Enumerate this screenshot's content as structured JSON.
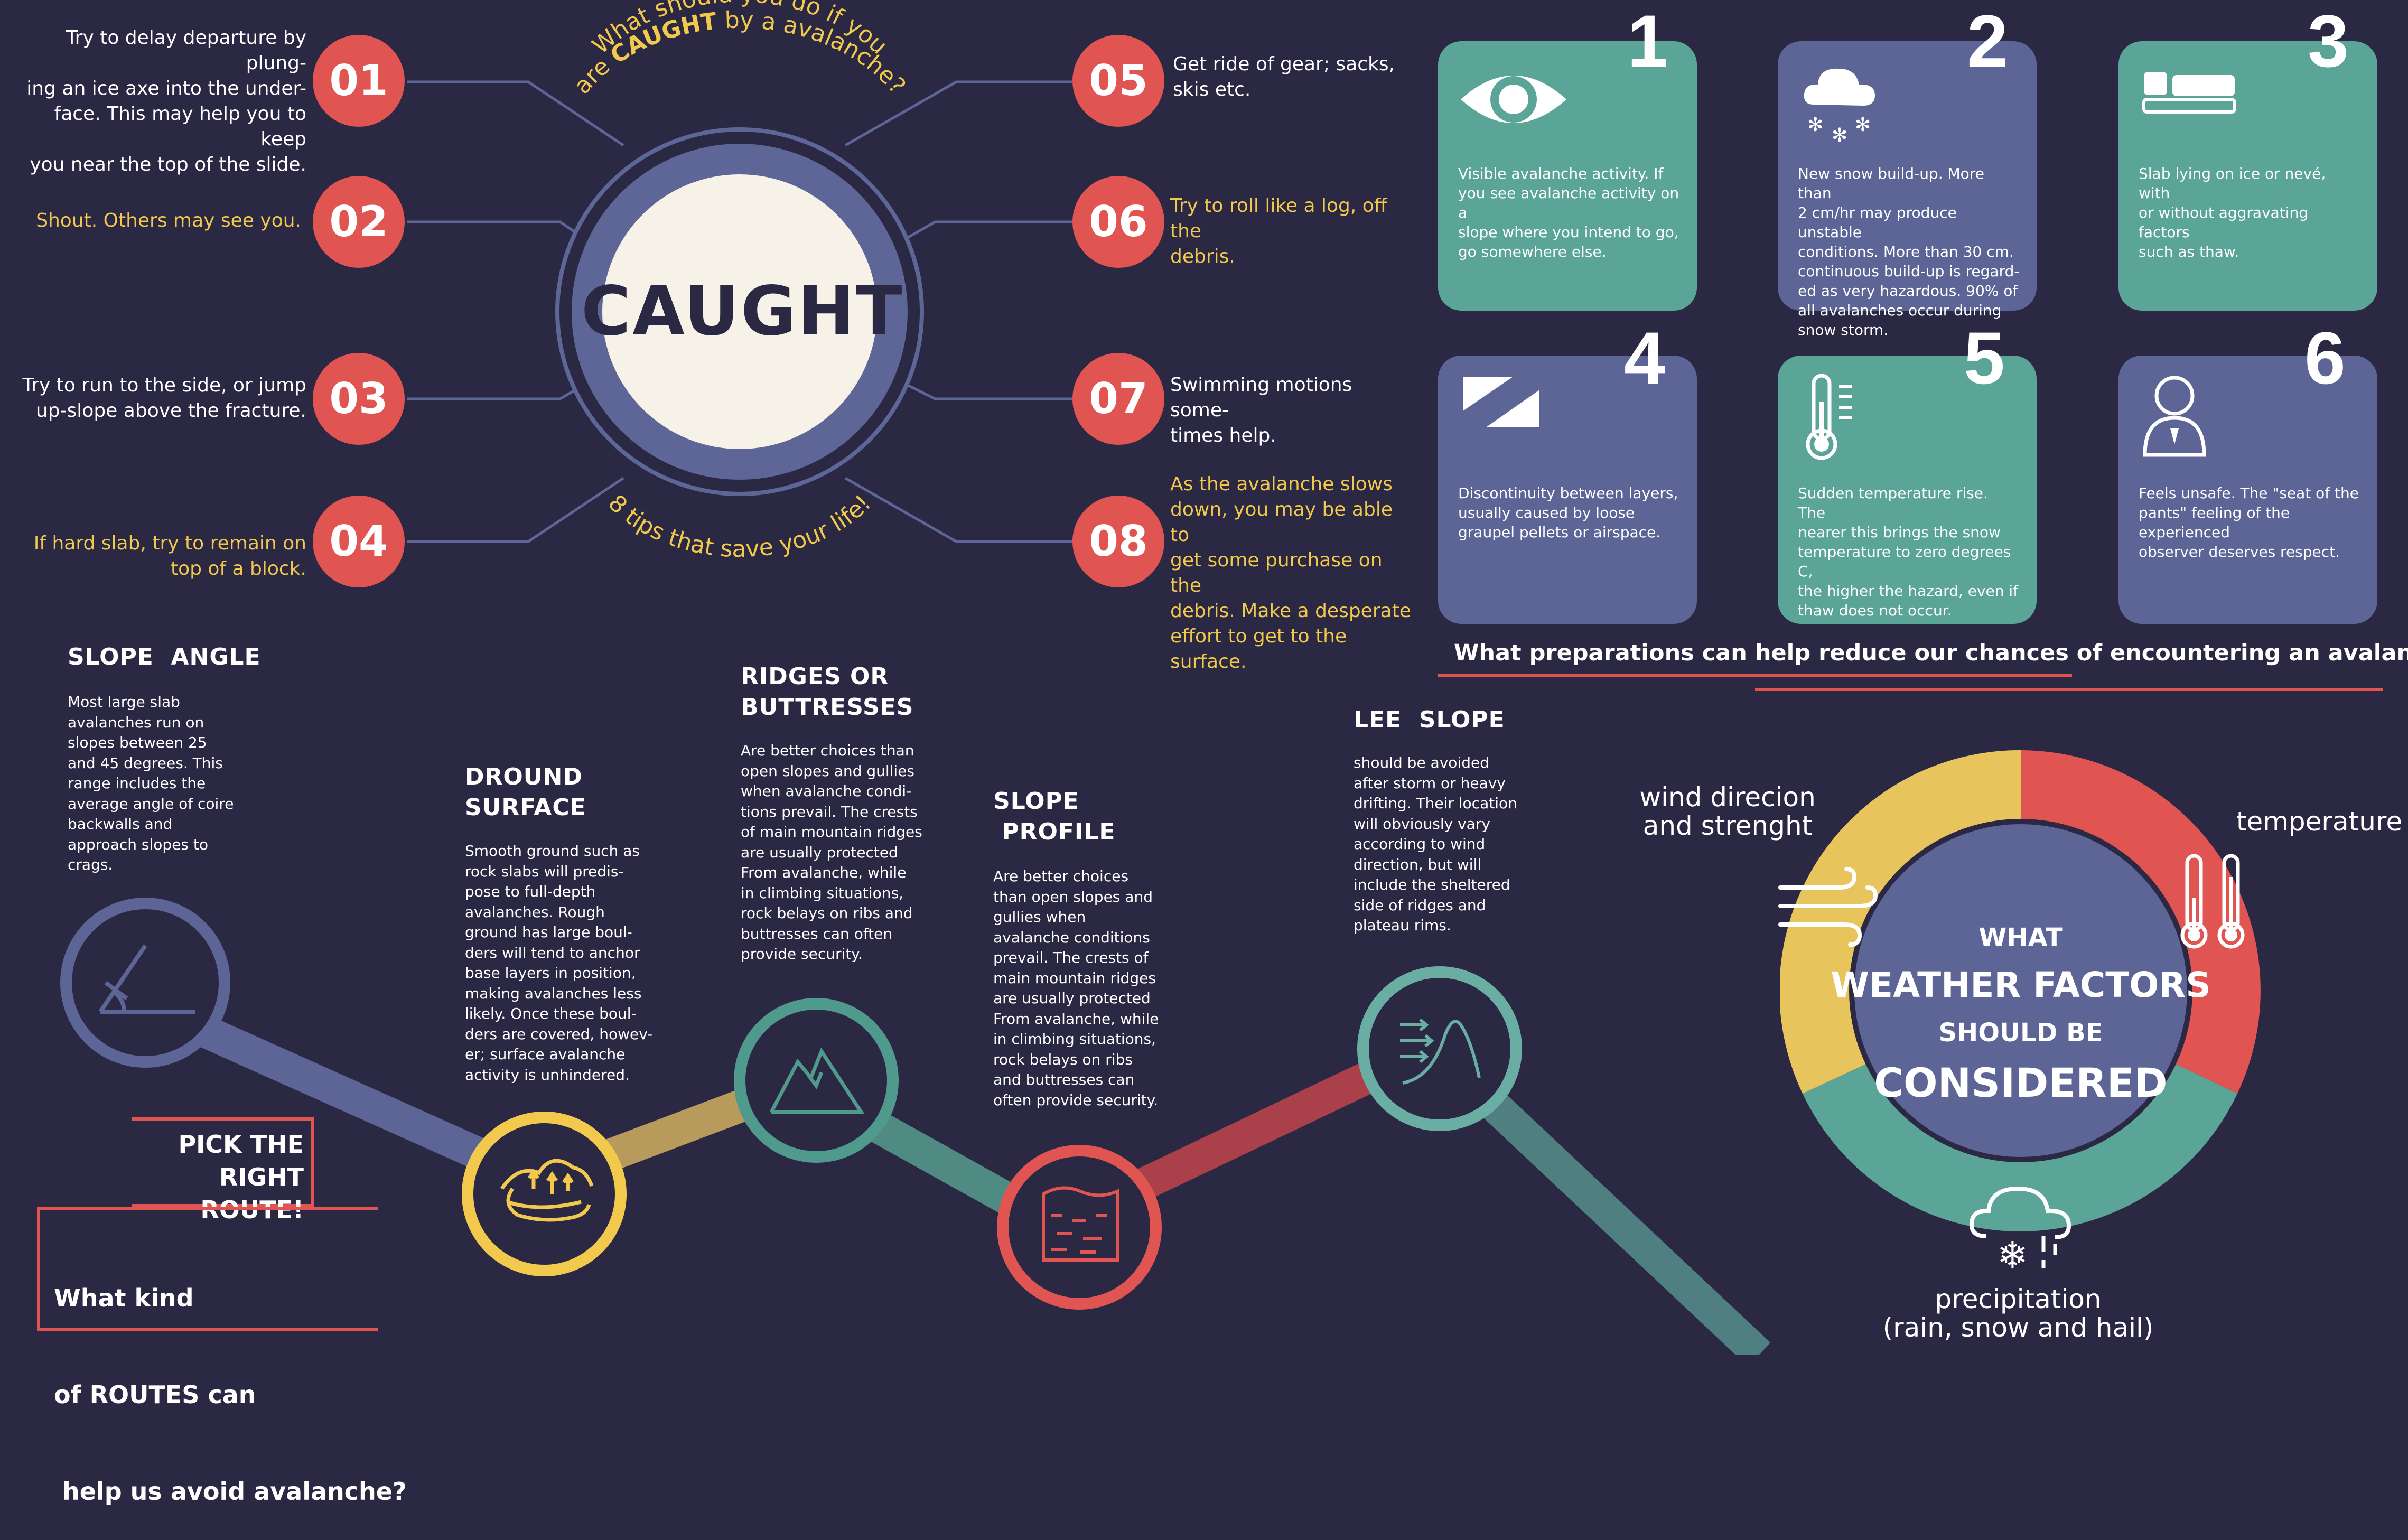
{
  "colors": {
    "background": "#2b2844",
    "red": "#e05552",
    "yellow": "#f2c94c",
    "teal": "#5aa597",
    "slate": "#5d6596",
    "cream": "#f7f2e8",
    "ring": "#5e6698"
  },
  "caught": {
    "center_title": "CAUGHT",
    "arc_top_line1": "What should you do if you",
    "arc_top_line2_pre": "are ",
    "arc_top_line2_bold": "CAUGHT",
    "arc_top_line2_post": " by a avalanche?",
    "arc_bottom": "8 tips that save your life!",
    "tips": [
      {
        "num": "01",
        "lines": [
          "Try to delay departure by plung-",
          "ing an ice axe into the under-",
          "face. This may help you to keep",
          "you near the top of the slide."
        ]
      },
      {
        "num": "02",
        "lines": [
          "Shout. Others may see you."
        ]
      },
      {
        "num": "03",
        "lines": [
          "Try to run to the side, or jump",
          "up-slope above the fracture."
        ]
      },
      {
        "num": "04",
        "lines": [
          "If hard slab, try to remain on",
          "top of a block."
        ]
      },
      {
        "num": "05",
        "lines": [
          "Get ride of gear; sacks,",
          "skis etc."
        ]
      },
      {
        "num": "06",
        "lines": [
          "Try to roll like a log, off the",
          "debris."
        ]
      },
      {
        "num": "07",
        "lines": [
          "Swimming motions some-",
          "times help."
        ]
      },
      {
        "num": "08",
        "lines": [
          "As the avalanche slows",
          "down, you may be able to",
          "get some purchase on the",
          "debris. Make a desperate",
          "effort to get to the surface."
        ]
      }
    ]
  },
  "preparations": {
    "question": "What preparations can help reduce our chances of encountering an avalanche?",
    "cards": [
      {
        "num": "1",
        "icon": "eye-icon",
        "lines": [
          "Visible avalanche activity. If",
          "you see avalanche activity on a",
          "slope where you intend to go,",
          "go somewhere else."
        ]
      },
      {
        "num": "2",
        "icon": "snow-cloud-icon",
        "lines": [
          "New snow build-up. More than",
          "2 cm/hr may produce unstable",
          "conditions. More than 30 cm.",
          "continuous build-up is regard-",
          "ed as very hazardous. 90% of",
          "all avalanches occur during",
          "snow storm."
        ]
      },
      {
        "num": "3",
        "icon": "slab-icon",
        "lines": [
          "Slab lying on ice or nevé, with",
          "or without aggravating factors",
          "such as thaw."
        ]
      },
      {
        "num": "4",
        "icon": "layers-icon",
        "lines": [
          "Discontinuity between layers,",
          "usually caused by loose",
          "graupel pellets or airspace."
        ]
      },
      {
        "num": "5",
        "icon": "thermometer-icon",
        "lines": [
          "Sudden temperature rise. The",
          "nearer this brings the snow",
          "temperature to zero degrees C,",
          "the higher the hazard, even if",
          "thaw does not occur."
        ]
      },
      {
        "num": "6",
        "icon": "person-icon",
        "lines": [
          "Feels unsafe. The \"seat of the",
          "pants\" feeling of the experienced",
          "observer deserves respect."
        ]
      }
    ]
  },
  "routes": {
    "pick_line1": "PICK THE",
    "pick_line2": "RIGHT ROUTE!",
    "question_lines": [
      "What kind",
      "of ROUTES can",
      " help us avoid avalanche?"
    ],
    "items": [
      {
        "title_lines": [
          "SLOPE  ANGLE"
        ],
        "icon": "slope-angle-icon",
        "lines": [
          "Most large slab",
          "avalanches run on",
          "slopes between 25",
          "and 45 degrees. This",
          "range includes the",
          "average angle of coire",
          "backwalls and",
          "approach slopes to",
          "crags."
        ]
      },
      {
        "title_lines": [
          "DROUND",
          "SURFACE"
        ],
        "icon": "ground-surface-icon",
        "lines": [
          "Smooth ground such as",
          "rock slabs will predis-",
          "pose to full-depth",
          "avalanches. Rough",
          "ground has large boul-",
          "ders will tend to anchor",
          "base layers in position,",
          "making avalanches less",
          "likely. Once these boul-",
          "ders are covered, howev-",
          "er; surface avalanche",
          "activity is unhindered."
        ]
      },
      {
        "title_lines": [
          "RIDGES OR",
          "BUTTRESSES"
        ],
        "icon": "mountain-icon",
        "lines": [
          "Are better choices than",
          "open slopes and gullies",
          "when avalanche condi-",
          "tions prevail. The crests",
          "of main mountain ridges",
          "are usually protected",
          "From avalanche, while",
          "in climbing situations,",
          "rock belays on ribs and",
          "buttresses can often",
          "provide security."
        ]
      },
      {
        "title_lines": [
          "SLOPE",
          " PROFILE"
        ],
        "icon": "slope-profile-icon",
        "lines": [
          "Are better choices",
          "than open slopes and",
          "gullies when",
          "avalanche conditions",
          "prevail. The crests of",
          "main mountain ridges",
          "are usually protected",
          "From avalanche, while",
          "in climbing situations,",
          "rock belays on ribs",
          "and buttresses can",
          "often provide security."
        ]
      },
      {
        "title_lines": [
          "LEE  SLOPE"
        ],
        "icon": "lee-slope-icon",
        "lines": [
          "should be avoided",
          "after storm or heavy",
          "drifting. Their location",
          "will obviously vary",
          "according to wind",
          "direction, but will",
          "include the sheltered",
          "side of ridges and",
          "plateau rims."
        ]
      }
    ]
  },
  "weather": {
    "center_line1": "WHAT",
    "center_line2": "WEATHER FACTORS",
    "center_line3": "SHOULD BE",
    "center_line4": "CONSIDERED",
    "wind_line1": "wind direcion",
    "wind_line2": "and strenght",
    "temperature": "temperature",
    "precip_line1": "precipitation",
    "precip_line2": "(rain, snow and hail)"
  }
}
